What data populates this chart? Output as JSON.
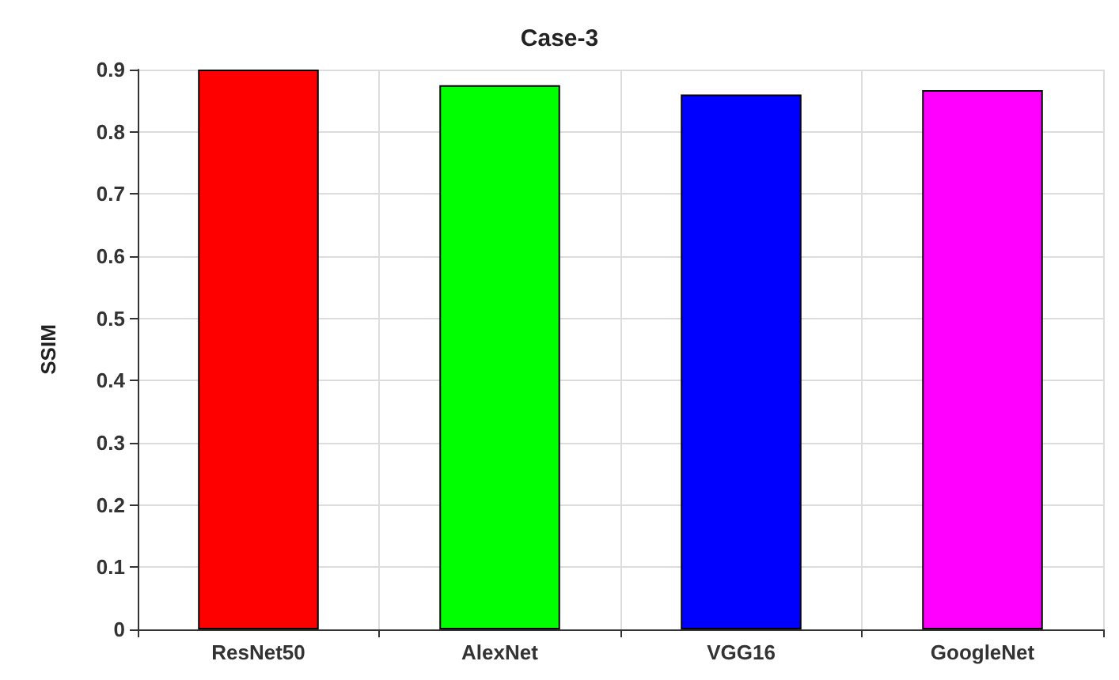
{
  "chart_data": {
    "type": "bar",
    "title": "Case-3",
    "ylabel": "SSIM",
    "categories": [
      "ResNet50",
      "AlexNet",
      "VGG16",
      "GoogleNet"
    ],
    "values": [
      0.9,
      0.875,
      0.86,
      0.867
    ],
    "colors": [
      "#ff0000",
      "#00ff00",
      "#0000ff",
      "#ff00ff"
    ],
    "ylim": [
      0,
      0.9
    ],
    "yticks": [
      0,
      0.1,
      0.2,
      0.3,
      0.4,
      0.5,
      0.6,
      0.7,
      0.8,
      0.9
    ],
    "grid": true
  }
}
